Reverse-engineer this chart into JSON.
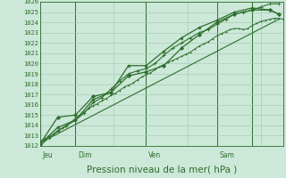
{
  "bg_color": "#cce8d8",
  "grid_color": "#aaccb8",
  "line_color": "#2d6e2d",
  "marker_color": "#2d6e2d",
  "xlabel": "Pression niveau de la mer( hPa )",
  "xlabel_fontsize": 7.5,
  "ylim": [
    1012,
    1026
  ],
  "yticks": [
    1012,
    1013,
    1014,
    1015,
    1016,
    1017,
    1018,
    1019,
    1020,
    1021,
    1022,
    1023,
    1024,
    1025,
    1026
  ],
  "day_labels": [
    "Jeu",
    "Dim",
    "Ven",
    "Sam"
  ],
  "total_hours": 168,
  "xlim": [
    0,
    165
  ],
  "series1_x": [
    0,
    3,
    6,
    9,
    12,
    15,
    18,
    21,
    24,
    27,
    30,
    33,
    36,
    39,
    42,
    45,
    48,
    51,
    54,
    57,
    60,
    63,
    66,
    69,
    72,
    75,
    78,
    81,
    84,
    87,
    90,
    93,
    96,
    99,
    102,
    105,
    108,
    111,
    114,
    117,
    120,
    123,
    126,
    129,
    132,
    135,
    138,
    141,
    144,
    147,
    150,
    153,
    156,
    159,
    162,
    165
  ],
  "series1_y": [
    1012.4,
    1012.7,
    1012.9,
    1013.1,
    1013.4,
    1013.7,
    1013.9,
    1014.3,
    1014.7,
    1015.0,
    1015.3,
    1015.6,
    1015.9,
    1016.1,
    1016.4,
    1016.6,
    1016.9,
    1017.1,
    1017.4,
    1017.7,
    1017.9,
    1018.1,
    1018.4,
    1018.7,
    1018.9,
    1019.1,
    1019.4,
    1019.7,
    1019.9,
    1020.1,
    1020.3,
    1020.5,
    1020.7,
    1020.9,
    1021.1,
    1021.4,
    1021.7,
    1021.9,
    1022.1,
    1022.4,
    1022.7,
    1022.9,
    1023.1,
    1023.3,
    1023.4,
    1023.4,
    1023.3,
    1023.4,
    1023.7,
    1023.9,
    1024.1,
    1024.2,
    1024.3,
    1024.4,
    1024.4,
    1024.3
  ],
  "series2_x": [
    0,
    12,
    24,
    36,
    48,
    60,
    72,
    84,
    96,
    108,
    120,
    132,
    144,
    156,
    162
  ],
  "series2_y": [
    1012.2,
    1014.8,
    1015.0,
    1016.8,
    1017.2,
    1018.8,
    1019.2,
    1019.8,
    1021.5,
    1022.8,
    1024.0,
    1024.8,
    1025.2,
    1025.2,
    1024.8
  ],
  "series3_x": [
    0,
    6,
    12,
    18,
    24,
    30,
    36,
    42,
    48,
    54,
    60,
    66,
    72,
    78,
    84,
    90,
    96,
    102,
    108,
    114,
    120,
    126,
    132,
    138,
    144,
    150,
    156,
    162
  ],
  "series3_y": [
    1012.0,
    1012.8,
    1013.5,
    1014.0,
    1014.5,
    1015.2,
    1016.2,
    1016.7,
    1017.5,
    1018.3,
    1019.0,
    1019.3,
    1019.5,
    1020.0,
    1020.8,
    1021.5,
    1022.0,
    1022.5,
    1023.0,
    1023.3,
    1023.8,
    1024.3,
    1024.8,
    1025.0,
    1025.2,
    1025.5,
    1025.8,
    1025.8
  ],
  "series4_x": [
    0,
    12,
    24,
    36,
    48,
    60,
    72,
    84,
    96,
    108,
    120,
    132,
    144,
    156,
    162
  ],
  "series4_y": [
    1012.2,
    1013.8,
    1014.5,
    1016.5,
    1017.2,
    1019.8,
    1019.8,
    1021.2,
    1022.5,
    1023.5,
    1024.2,
    1025.0,
    1025.4,
    1025.2,
    1024.8
  ],
  "trend_x": [
    0,
    162
  ],
  "trend_y": [
    1012.3,
    1024.3
  ]
}
